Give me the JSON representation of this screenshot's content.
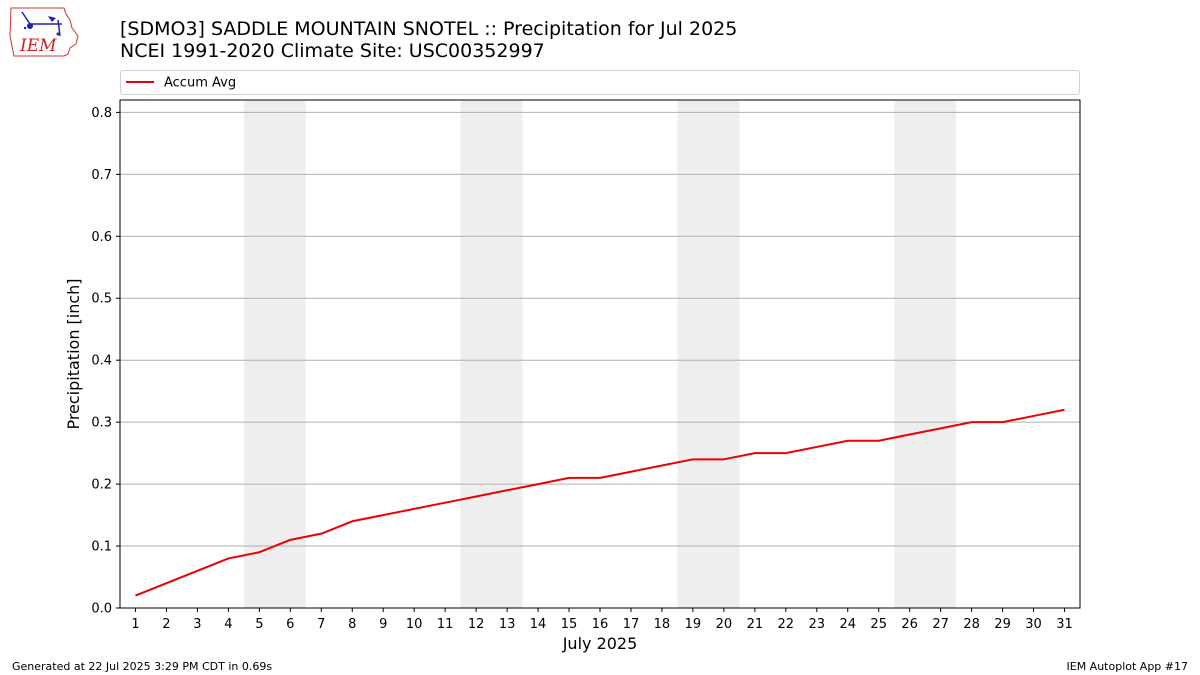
{
  "header": {
    "title_line1": "[SDMO3] SADDLE MOUNTAIN SNOTEL :: Precipitation for Jul 2025",
    "title_line2": "NCEI 1991-2020 Climate Site: USC00352997"
  },
  "logo": {
    "text": "IEM",
    "icon": "iem-logo-icon",
    "color": "#cc2222"
  },
  "footer": {
    "left": "Generated at 22 Jul 2025 3:29 PM CDT in 0.69s",
    "right": "IEM Autoplot App #17"
  },
  "chart_data": {
    "type": "line",
    "xlabel": "July 2025",
    "ylabel": "Precipitation [inch]",
    "ylim": [
      0,
      0.82
    ],
    "xlim": [
      0.5,
      31.5
    ],
    "yticks": [
      "0.0",
      "0.1",
      "0.2",
      "0.3",
      "0.4",
      "0.5",
      "0.6",
      "0.7",
      "0.8"
    ],
    "ytick_values": [
      0,
      0.1,
      0.2,
      0.3,
      0.4,
      0.5,
      0.6,
      0.7,
      0.8
    ],
    "categories": [
      "1",
      "2",
      "3",
      "4",
      "5",
      "6",
      "7",
      "8",
      "9",
      "10",
      "11",
      "12",
      "13",
      "14",
      "15",
      "16",
      "17",
      "18",
      "19",
      "20",
      "21",
      "22",
      "23",
      "24",
      "25",
      "26",
      "27",
      "28",
      "29",
      "30",
      "31"
    ],
    "x": [
      1,
      2,
      3,
      4,
      5,
      6,
      7,
      8,
      9,
      10,
      11,
      12,
      13,
      14,
      15,
      16,
      17,
      18,
      19,
      20,
      21,
      22,
      23,
      24,
      25,
      26,
      27,
      28,
      29,
      30,
      31
    ],
    "series": [
      {
        "name": "Accum Avg",
        "color": "#ee0000",
        "values": [
          0.02,
          0.04,
          0.06,
          0.08,
          0.09,
          0.11,
          0.12,
          0.14,
          0.15,
          0.16,
          0.17,
          0.18,
          0.19,
          0.2,
          0.21,
          0.21,
          0.22,
          0.23,
          0.24,
          0.24,
          0.25,
          0.25,
          0.26,
          0.27,
          0.27,
          0.28,
          0.29,
          0.3,
          0.3,
          0.31,
          0.32
        ]
      }
    ],
    "weekend_bands": [
      [
        5,
        6
      ],
      [
        12,
        13
      ],
      [
        19,
        20
      ],
      [
        26,
        27
      ]
    ],
    "band_color": "#eeeeee",
    "grid": true,
    "grid_axis": "y",
    "legend": "top-left"
  }
}
